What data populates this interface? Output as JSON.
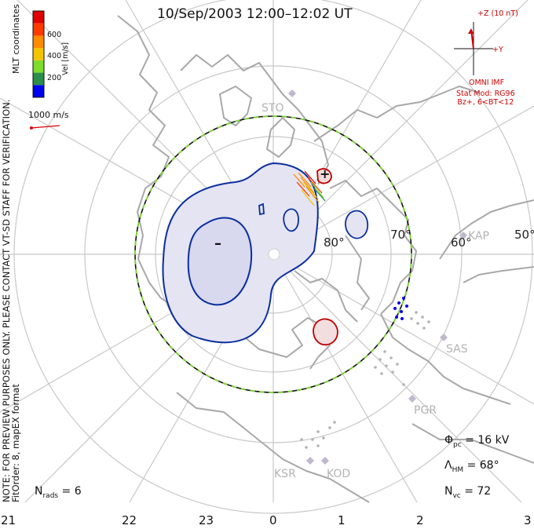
{
  "title": "10/Sep/2003 12:00–12:02 UT",
  "side_note": "NOTE: FOR PREVIEW PURPOSES ONLY. PLEASE CONTACT VT-SD STAFF FOR VERIFICATION.",
  "fit_order": "FitOrder: 8, mapEX format",
  "coords": "MLT coordinates",
  "colorbar": {
    "unit": "Vel [m/s]",
    "ticks": [
      "600",
      "400",
      "200"
    ],
    "colors": [
      "#0000ee",
      "#2a8f4a",
      "#7ddc2c",
      "#f4c400",
      "#ff8c00",
      "#ff3a00",
      "#e00000"
    ]
  },
  "ref_vector": "1000 m/s",
  "imf": {
    "z_label": "+Z (10 nT)",
    "y_label": "+Y",
    "source": "OMNI IMF",
    "stat_mod": "Stat Mod: RG96",
    "condition": "Bz+, 6<BT<12"
  },
  "lat_labels": [
    "80°",
    "70°",
    "60°",
    "50°"
  ],
  "stations": [
    "STO",
    "KAP",
    "SAS",
    "PGR",
    "KSR",
    "KOD"
  ],
  "mlt_labels": [
    "21",
    "22",
    "23",
    "0",
    "1",
    "2",
    "3"
  ],
  "extrema": {
    "min": "–",
    "max": "+"
  },
  "params": {
    "phi_sym": "Φ",
    "phi_sub": "pc",
    "phi_val": " = 16 kV",
    "lam_sym": "Λ",
    "lam_sub": "HM",
    "lam_val": " = 68°",
    "n_sym": "N",
    "nvc_sub": "vc",
    "nvc_val": " = 72",
    "nrads_sub": "rads",
    "nrads_val": " = 6"
  },
  "colors": {
    "grid": "#c8c8c8",
    "coast": "#a8a8a8",
    "contour": "#0a2e9e",
    "fill_neg": "#e4e4f2",
    "fill_pos": "#f2dede",
    "hmb_dash": "#7fd23c",
    "imf": "#cc0000"
  }
}
